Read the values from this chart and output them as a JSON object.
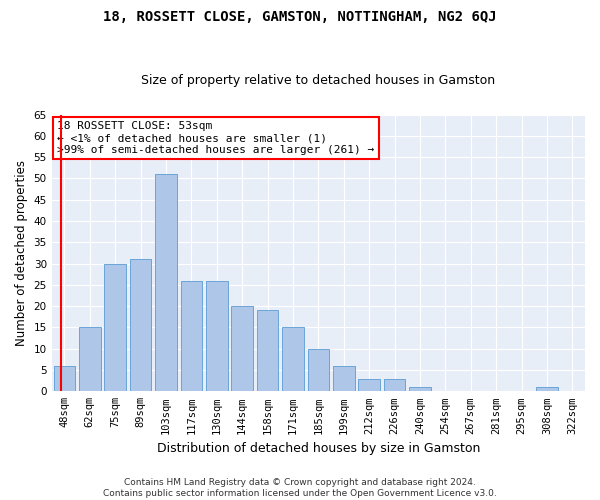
{
  "title": "18, ROSSETT CLOSE, GAMSTON, NOTTINGHAM, NG2 6QJ",
  "subtitle": "Size of property relative to detached houses in Gamston",
  "xlabel": "Distribution of detached houses by size in Gamston",
  "ylabel": "Number of detached properties",
  "bar_labels": [
    "48sqm",
    "62sqm",
    "75sqm",
    "89sqm",
    "103sqm",
    "117sqm",
    "130sqm",
    "144sqm",
    "158sqm",
    "171sqm",
    "185sqm",
    "199sqm",
    "212sqm",
    "226sqm",
    "240sqm",
    "254sqm",
    "267sqm",
    "281sqm",
    "295sqm",
    "308sqm",
    "322sqm"
  ],
  "bar_values": [
    6,
    15,
    30,
    31,
    51,
    26,
    26,
    20,
    19,
    15,
    10,
    6,
    3,
    3,
    1,
    0,
    0,
    0,
    0,
    1,
    0
  ],
  "bar_color": "#aec6e8",
  "bar_edge_color": "#5a9bd4",
  "background_color": "#e8eef8",
  "annotation_line1": "18 ROSSETT CLOSE: 53sqm",
  "annotation_line2": "← <1% of detached houses are smaller (1)",
  "annotation_line3": ">99% of semi-detached houses are larger (261) →",
  "annotation_box_color": "white",
  "annotation_box_edge_color": "red",
  "vline_color": "red",
  "ylim_max": 65,
  "yticks": [
    0,
    5,
    10,
    15,
    20,
    25,
    30,
    35,
    40,
    45,
    50,
    55,
    60,
    65
  ],
  "footnote_line1": "Contains HM Land Registry data © Crown copyright and database right 2024.",
  "footnote_line2": "Contains public sector information licensed under the Open Government Licence v3.0.",
  "title_fontsize": 10,
  "subtitle_fontsize": 9,
  "xlabel_fontsize": 9,
  "ylabel_fontsize": 8.5,
  "tick_fontsize": 7.5,
  "annotation_fontsize": 8,
  "footnote_fontsize": 6.5
}
